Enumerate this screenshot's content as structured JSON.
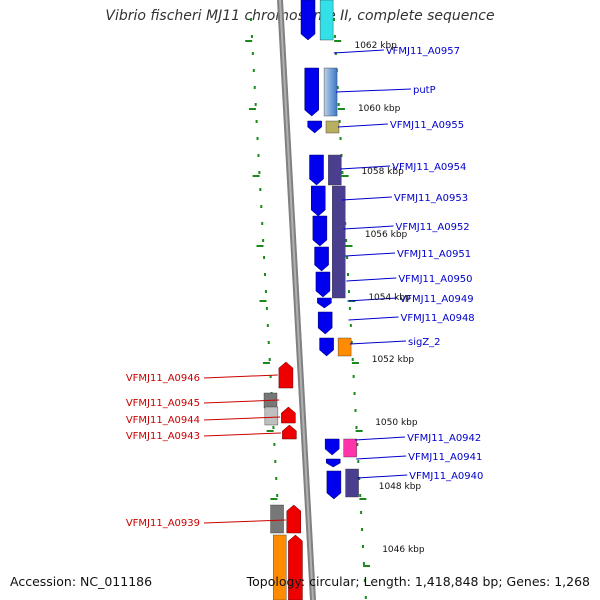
{
  "title": "Vibrio fischeri MJ11 chromosome II, complete sequence",
  "footer": {
    "accession": "Accession: NC_011186",
    "topology": "Topology: circular; Length: 1,418,848 bp; Genes: 1,268"
  },
  "colors": {
    "forward_gene": "#0000ee",
    "reverse_gene": "#ee0000",
    "label_forward": "#0000cc",
    "label_reverse": "#cc0000",
    "backbone": "#808080",
    "tick_dots": "#1a8a1a",
    "cog_purple": "#4a3f8f",
    "cog_cyan": "#33e0e8",
    "cog_orange": "#ff8c00",
    "cog_magenta": "#ff33aa",
    "cog_khaki": "#b8b060",
    "cog_gray": "#777777",
    "cog_lightgray": "#bfbfbf"
  },
  "kbp_labels": [
    "1062 kbp",
    "1060 kbp",
    "1058 kbp",
    "1056 kbp",
    "1054 kbp",
    "1052 kbp",
    "1050 kbp",
    "1048 kbp",
    "1046 kbp"
  ],
  "forward_genes": [
    "VFMJ11_A0957",
    "putP",
    "VFMJ11_A0955",
    "VFMJ11_A0954",
    "VFMJ11_A0953",
    "VFMJ11_A0952",
    "VFMJ11_A0951",
    "VFMJ11_A0950",
    "VFMJ11_A0949",
    "VFMJ11_A0948",
    "sigZ_2",
    "VFMJ11_A0942",
    "VFMJ11_A0941",
    "VFMJ11_A0940"
  ],
  "reverse_genes": [
    "VFMJ11_A0946",
    "VFMJ11_A0945",
    "VFMJ11_A0944",
    "VFMJ11_A0943",
    "VFMJ11_A0939"
  ]
}
